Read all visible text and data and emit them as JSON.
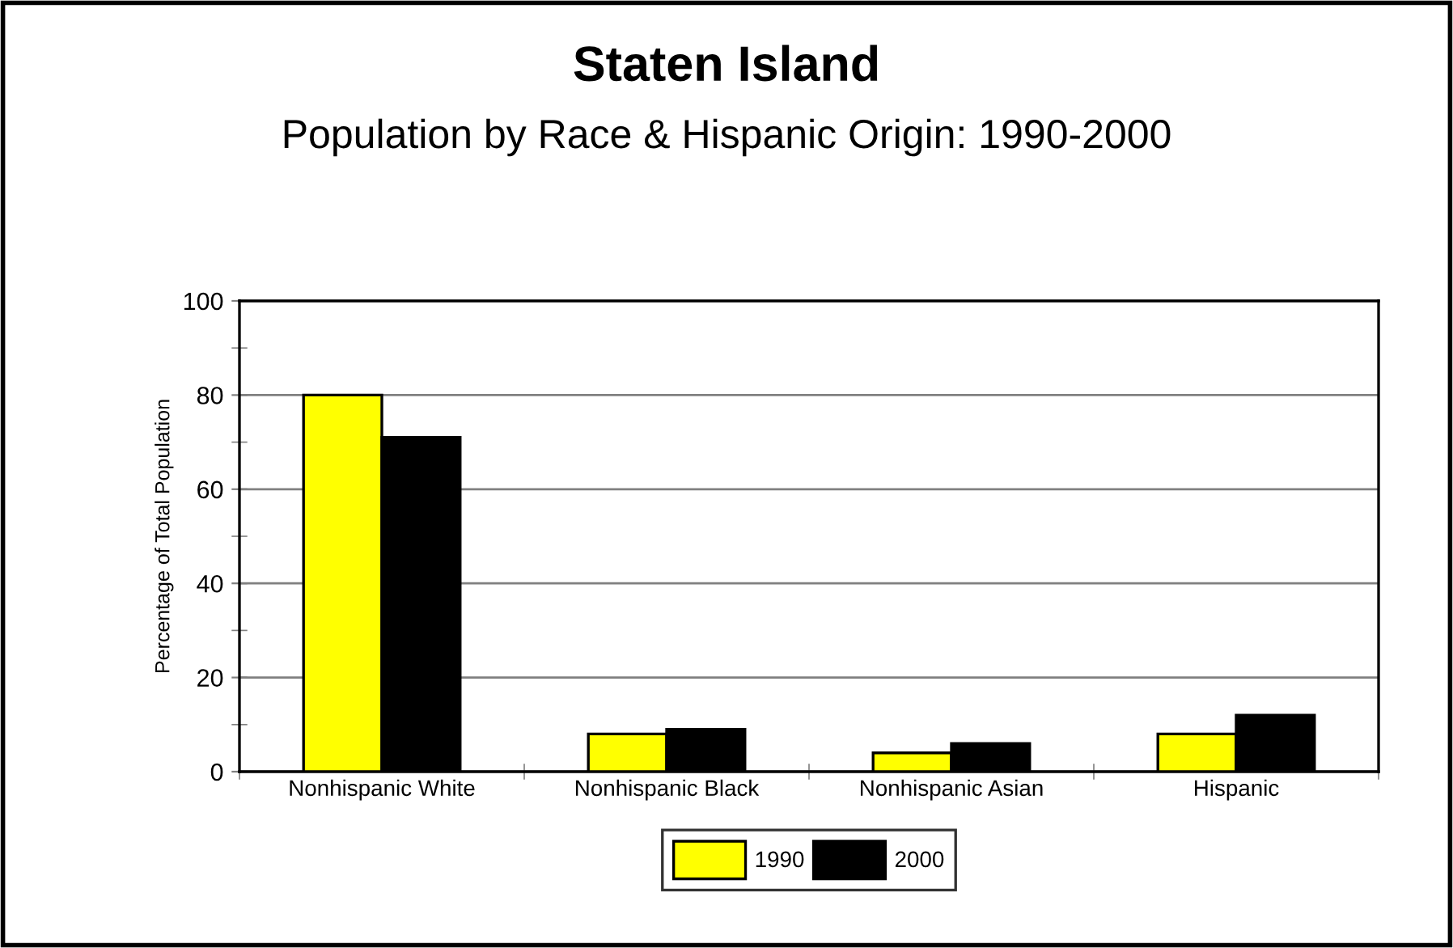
{
  "chart_data": {
    "type": "bar",
    "title": "Staten Island",
    "subtitle": "Population by Race & Hispanic Origin: 1990-2000",
    "ylabel": "Percentage of Total Population",
    "categories": [
      "Nonhispanic White",
      "Nonhispanic Black",
      "Nonhispanic Asian",
      "Hispanic"
    ],
    "series": [
      {
        "name": "1990",
        "color": "#ffff00",
        "values": [
          80,
          8,
          4,
          8
        ]
      },
      {
        "name": "2000",
        "color": "#000000",
        "values": [
          71,
          9,
          6,
          12
        ]
      }
    ],
    "ylim": [
      0,
      100
    ],
    "yticks": [
      0,
      {
        "value": 10,
        "label": null
      },
      20,
      {
        "value": 30,
        "label": null
      },
      40,
      {
        "value": 50,
        "label": null
      },
      60,
      {
        "value": 70,
        "label": null
      },
      80,
      {
        "value": 90,
        "label": null
      },
      100
    ],
    "grid": "y",
    "legend": "bottom"
  }
}
